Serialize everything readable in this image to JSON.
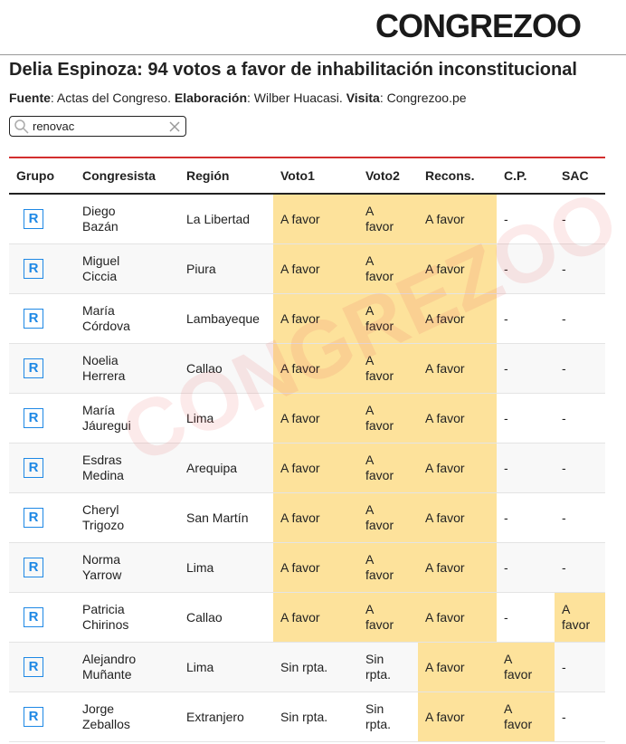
{
  "logo": "CONGREZOO",
  "header": {
    "title": "Delia Espinoza: 94 votos a favor de inhabilitación inconstitucional",
    "source": [
      {
        "label": "Fuente",
        "text": ": Actas del Congreso. "
      },
      {
        "label": "Elaboración",
        "text": ": Wilber Huacasi. "
      },
      {
        "label": "Visita",
        "text": ": Congrezoo.pe"
      }
    ]
  },
  "search": {
    "value": "renovac"
  },
  "table": {
    "columns": [
      "Grupo",
      "Congresista",
      "Región",
      "Voto1",
      "Voto2",
      "Recons.",
      "C.P.",
      "SAC"
    ],
    "rows": [
      [
        "R",
        "Diego Bazán",
        "La Libertad",
        "A favor",
        "A favor",
        "A favor",
        "-",
        "-"
      ],
      [
        "R",
        "Miguel Ciccia",
        "Piura",
        "A favor",
        "A favor",
        "A favor",
        "-",
        "-"
      ],
      [
        "R",
        "María Córdova",
        "Lambayeque",
        "A favor",
        "A favor",
        "A favor",
        "-",
        "-"
      ],
      [
        "R",
        "Noelia Herrera",
        "Callao",
        "A favor",
        "A favor",
        "A favor",
        "-",
        "-"
      ],
      [
        "R",
        "María Jáuregui",
        "Lima",
        "A favor",
        "A favor",
        "A favor",
        "-",
        "-"
      ],
      [
        "R",
        "Esdras Medina",
        "Arequipa",
        "A favor",
        "A favor",
        "A favor",
        "-",
        "-"
      ],
      [
        "R",
        "Cheryl Trigozo",
        "San Martín",
        "A favor",
        "A favor",
        "A favor",
        "-",
        "-"
      ],
      [
        "R",
        "Norma Yarrow",
        "Lima",
        "A favor",
        "A favor",
        "A favor",
        "-",
        "-"
      ],
      [
        "R",
        "Patricia Chirinos",
        "Callao",
        "A favor",
        "A favor",
        "A favor",
        "-",
        "A favor"
      ],
      [
        "R",
        "Alejandro Muñante",
        "Lima",
        "Sin rpta.",
        "Sin rpta.",
        "A favor",
        "A favor",
        "-"
      ],
      [
        "R",
        "Jorge Zeballos",
        "Extranjero",
        "Sin rpta.",
        "Sin rpta.",
        "A favor",
        "A favor",
        "-"
      ]
    ]
  }
}
